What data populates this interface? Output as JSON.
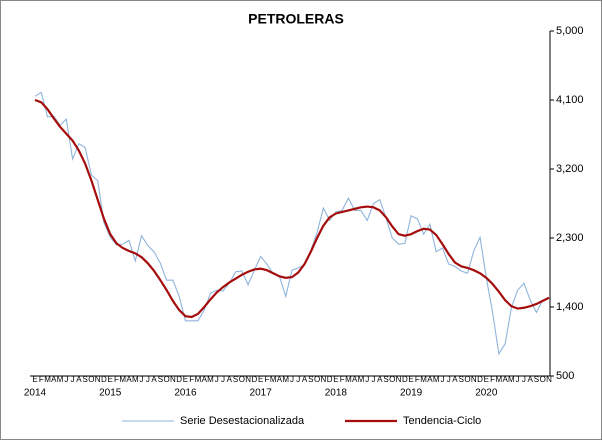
{
  "chart_data": {
    "type": "line",
    "title": "PETROLERAS",
    "categories": [
      "E",
      "F",
      "M",
      "A",
      "M",
      "J",
      "J",
      "A",
      "S",
      "O",
      "N",
      "D",
      "E",
      "F",
      "M",
      "A",
      "M",
      "J",
      "J",
      "A",
      "S",
      "O",
      "N",
      "D",
      "E",
      "F",
      "M",
      "A",
      "M",
      "J",
      "J",
      "A",
      "S",
      "O",
      "N",
      "D",
      "E",
      "F",
      "M",
      "A",
      "M",
      "J",
      "J",
      "A",
      "S",
      "O",
      "N",
      "D",
      "E",
      "F",
      "M",
      "A",
      "M",
      "J",
      "J",
      "A",
      "S",
      "O",
      "N",
      "D",
      "E",
      "F",
      "M",
      "A",
      "M",
      "J",
      "J",
      "A",
      "S",
      "O",
      "N",
      "D",
      "E",
      "F",
      "M",
      "A",
      "M",
      "J",
      "J",
      "A",
      "S",
      "O",
      "N"
    ],
    "years": [
      "2014",
      "2015",
      "2016",
      "2017",
      "2018",
      "2019",
      "2020"
    ],
    "series": [
      {
        "name": "Serie Desestacionalizada",
        "color": "#8fb4dc",
        "values": [
          4150,
          4200,
          3880,
          3890,
          3770,
          3850,
          3330,
          3530,
          3480,
          3120,
          3050,
          2500,
          2310,
          2210,
          2220,
          2270,
          2000,
          2330,
          2200,
          2120,
          1970,
          1750,
          1750,
          1540,
          1220,
          1220,
          1220,
          1360,
          1580,
          1620,
          1610,
          1710,
          1860,
          1870,
          1690,
          1880,
          2060,
          1960,
          1830,
          1800,
          1540,
          1880,
          1910,
          1950,
          2140,
          2370,
          2690,
          2530,
          2640,
          2660,
          2820,
          2660,
          2660,
          2530,
          2750,
          2800,
          2560,
          2300,
          2220,
          2230,
          2590,
          2550,
          2350,
          2480,
          2120,
          2170,
          1960,
          1930,
          1870,
          1840,
          2130,
          2310,
          1780,
          1330,
          790,
          920,
          1390,
          1620,
          1710,
          1490,
          1330,
          1490,
          1520
        ]
      },
      {
        "name": "Tendencia-Ciclo",
        "color": "#a50d0d",
        "values": [
          4100,
          4070,
          3980,
          3860,
          3750,
          3660,
          3570,
          3440,
          3270,
          3050,
          2800,
          2550,
          2350,
          2230,
          2170,
          2130,
          2100,
          2050,
          1970,
          1870,
          1750,
          1620,
          1480,
          1360,
          1280,
          1270,
          1310,
          1400,
          1500,
          1590,
          1660,
          1720,
          1770,
          1820,
          1860,
          1890,
          1900,
          1880,
          1840,
          1800,
          1780,
          1790,
          1850,
          1960,
          2120,
          2300,
          2460,
          2570,
          2620,
          2640,
          2660,
          2680,
          2700,
          2710,
          2700,
          2660,
          2570,
          2450,
          2350,
          2330,
          2350,
          2390,
          2420,
          2410,
          2340,
          2220,
          2090,
          1980,
          1930,
          1910,
          1880,
          1840,
          1780,
          1700,
          1600,
          1490,
          1410,
          1380,
          1390,
          1410,
          1440,
          1480,
          1520
        ]
      }
    ],
    "ylim": [
      500,
      5000
    ],
    "yticks": [
      500,
      {
        "value": 1400,
        "label": "1,400"
      },
      {
        "value": 2300,
        "label": "2,300"
      },
      {
        "value": 3200,
        "label": "3,200"
      },
      {
        "value": 4100,
        "label": "4,100"
      },
      {
        "value": 5000,
        "label": "5,000"
      }
    ],
    "y_axis_side": "right",
    "grid": false
  }
}
